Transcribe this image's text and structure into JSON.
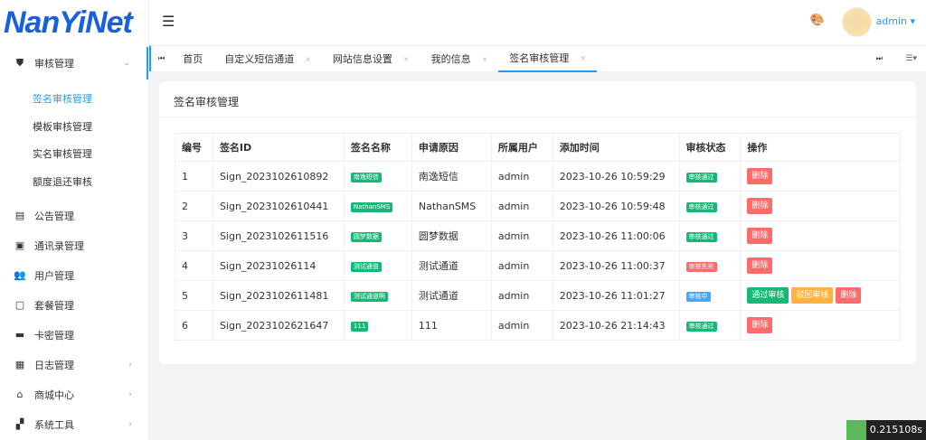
{
  "logo": "NanYiNet",
  "sidebar": {
    "items": [
      {
        "label": "审核管理",
        "icon": "shield-check-icon",
        "open": true,
        "children": [
          "签名审核管理",
          "模板审核管理",
          "实名审核管理",
          "额度退还审核"
        ]
      },
      {
        "label": "公告管理",
        "icon": "book-icon"
      },
      {
        "label": "通讯录管理",
        "icon": "contact-card-icon"
      },
      {
        "label": "用户管理",
        "icon": "users-icon"
      },
      {
        "label": "套餐管理",
        "icon": "chat-icon"
      },
      {
        "label": "卡密管理",
        "icon": "card-icon"
      },
      {
        "label": "日志管理",
        "icon": "calendar-icon",
        "arrow": true
      },
      {
        "label": "商城中心",
        "icon": "shop-icon",
        "arrow": true
      },
      {
        "label": "系统工具",
        "icon": "tools-icon",
        "arrow": true
      }
    ]
  },
  "header": {
    "user": "admin"
  },
  "tabs": [
    "首页",
    "自定义短信通道",
    "网站信息设置",
    "我的信息",
    "签名审核管理"
  ],
  "card": {
    "title": "签名审核管理"
  },
  "table": {
    "headers": [
      "编号",
      "签名ID",
      "签名名称",
      "申请原因",
      "所属用户",
      "添加时间",
      "审核状态",
      "操作"
    ],
    "rows": [
      {
        "id": "1",
        "sid": "Sign_2023102610892",
        "name": "南逸短信",
        "reason": "南逸短信",
        "user": "admin",
        "time": "2023-10-26 10:59:29",
        "status": "审核通过",
        "st": "g"
      },
      {
        "id": "2",
        "sid": "Sign_2023102610441",
        "name": "NathanSMS",
        "reason": "NathanSMS",
        "user": "admin",
        "time": "2023-10-26 10:59:48",
        "status": "审核通过",
        "st": "g"
      },
      {
        "id": "3",
        "sid": "Sign_2023102611516",
        "name": "圆梦数据",
        "reason": "圆梦数据",
        "user": "admin",
        "time": "2023-10-26 11:00:06",
        "status": "审核通过",
        "st": "g"
      },
      {
        "id": "4",
        "sid": "Sign_20231026114",
        "name": "测试通道",
        "reason": "测试通道",
        "user": "admin",
        "time": "2023-10-26 11:00:37",
        "status": "审核失败",
        "st": "r"
      },
      {
        "id": "5",
        "sid": "Sign_2023102611481",
        "name": "测试通道啊",
        "reason": "测试通道",
        "user": "admin",
        "time": "2023-10-26 11:01:27",
        "status": "审核中",
        "st": "b",
        "pending": true
      },
      {
        "id": "6",
        "sid": "Sign_2023102621647",
        "name": "111",
        "reason": "111",
        "user": "admin",
        "time": "2023-10-26 21:14:43",
        "status": "审核通过",
        "st": "g"
      }
    ]
  },
  "actions": {
    "approve": "通过审核",
    "reject": "驳回审核",
    "delete": "删除"
  },
  "timer": "0.215108s"
}
